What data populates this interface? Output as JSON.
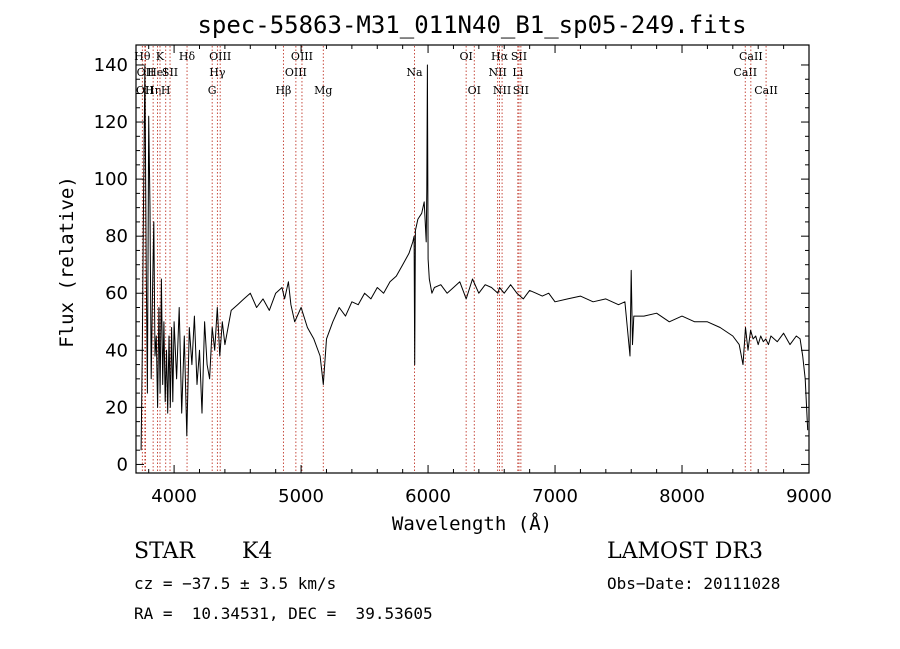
{
  "chart_data": {
    "type": "line",
    "title": "spec-55863-M31_011N40_B1_sp05-249.fits",
    "xlabel": "Wavelength (Å)",
    "ylabel": "Flux (relative)",
    "xlim": [
      3700,
      9000
    ],
    "ylim": [
      -3,
      147
    ],
    "xticks": [
      4000,
      5000,
      6000,
      7000,
      8000,
      9000
    ],
    "yticks": [
      0,
      20,
      40,
      60,
      80,
      100,
      120,
      140
    ],
    "grid": false,
    "line_color": "#000000",
    "marker_color": "#c0392b",
    "series": [
      {
        "name": "flux",
        "x": [
          3740,
          3750,
          3760,
          3770,
          3780,
          3790,
          3800,
          3810,
          3820,
          3830,
          3840,
          3850,
          3860,
          3870,
          3880,
          3890,
          3900,
          3910,
          3920,
          3930,
          3940,
          3950,
          3960,
          3970,
          3980,
          3990,
          4000,
          4020,
          4040,
          4060,
          4080,
          4100,
          4120,
          4140,
          4160,
          4180,
          4200,
          4220,
          4240,
          4260,
          4280,
          4300,
          4320,
          4340,
          4360,
          4380,
          4400,
          4450,
          4500,
          4550,
          4600,
          4650,
          4700,
          4750,
          4800,
          4850,
          4870,
          4900,
          4920,
          4950,
          5000,
          5050,
          5100,
          5150,
          5175,
          5200,
          5250,
          5300,
          5350,
          5400,
          5450,
          5500,
          5550,
          5600,
          5650,
          5700,
          5750,
          5800,
          5850,
          5880,
          5890,
          5895,
          5900,
          5920,
          5950,
          5970,
          5985,
          5990,
          5995,
          6000,
          6010,
          6030,
          6050,
          6100,
          6150,
          6200,
          6250,
          6300,
          6350,
          6400,
          6450,
          6500,
          6550,
          6563,
          6600,
          6650,
          6700,
          6750,
          6800,
          6850,
          6900,
          6950,
          7000,
          7100,
          7200,
          7300,
          7400,
          7500,
          7550,
          7590,
          7600,
          7610,
          7620,
          7650,
          7700,
          7800,
          7900,
          8000,
          8100,
          8200,
          8300,
          8400,
          8450,
          8480,
          8500,
          8520,
          8540,
          8560,
          8580,
          8600,
          8620,
          8640,
          8660,
          8680,
          8700,
          8750,
          8800,
          8850,
          8900,
          8930,
          8950,
          8970,
          8990
        ],
        "values": [
          5,
          40,
          95,
          140,
          70,
          25,
          122,
          90,
          30,
          60,
          85,
          38,
          45,
          20,
          55,
          25,
          65,
          28,
          50,
          22,
          40,
          18,
          45,
          20,
          48,
          22,
          50,
          30,
          55,
          18,
          45,
          10,
          48,
          35,
          52,
          28,
          40,
          18,
          50,
          35,
          30,
          48,
          40,
          55,
          38,
          50,
          42,
          54,
          56,
          58,
          60,
          55,
          58,
          54,
          60,
          62,
          58,
          64,
          56,
          50,
          55,
          48,
          44,
          38,
          28,
          44,
          50,
          55,
          52,
          57,
          56,
          60,
          58,
          62,
          60,
          64,
          66,
          70,
          74,
          78,
          80,
          35,
          82,
          86,
          88,
          92,
          78,
          96,
          140,
          72,
          65,
          60,
          62,
          63,
          60,
          62,
          64,
          58,
          65,
          60,
          63,
          62,
          60,
          62,
          60,
          63,
          60,
          58,
          61,
          60,
          59,
          60,
          57,
          58,
          59,
          57,
          58,
          56,
          57,
          38,
          68,
          42,
          52,
          52,
          52,
          53,
          50,
          52,
          50,
          50,
          48,
          45,
          42,
          35,
          48,
          40,
          47,
          44,
          45,
          42,
          45,
          43,
          44,
          42,
          45,
          43,
          46,
          42,
          45,
          44,
          38,
          30,
          12
        ]
      }
    ],
    "line_markers": [
      {
        "wavelength": 3750,
        "label": "Hθ",
        "row": 0
      },
      {
        "wavelength": 3770,
        "label": "OII",
        "row": 2
      },
      {
        "wavelength": 3775,
        "label": "OII",
        "row": 1
      },
      {
        "wavelength": 3835,
        "label": "Hη",
        "row": 2
      },
      {
        "wavelength": 3869,
        "label": "HeI",
        "row": 1
      },
      {
        "wavelength": 3889,
        "label": "K",
        "row": 0
      },
      {
        "wavelength": 3934,
        "label": "H",
        "row": 2
      },
      {
        "wavelength": 3968,
        "label": "SII",
        "row": 1
      },
      {
        "wavelength": 4102,
        "label": "Hδ",
        "row": 0
      },
      {
        "wavelength": 4300,
        "label": "G",
        "row": 2
      },
      {
        "wavelength": 4341,
        "label": "Hγ",
        "row": 1
      },
      {
        "wavelength": 4363,
        "label": "OIII",
        "row": 0
      },
      {
        "wavelength": 4861,
        "label": "Hβ",
        "row": 2
      },
      {
        "wavelength": 4959,
        "label": "OIII",
        "row": 1
      },
      {
        "wavelength": 5007,
        "label": "OIII",
        "row": 0
      },
      {
        "wavelength": 5175,
        "label": "Mg",
        "row": 2
      },
      {
        "wavelength": 5893,
        "label": "Na",
        "row": 1
      },
      {
        "wavelength": 6300,
        "label": "OI",
        "row": 0
      },
      {
        "wavelength": 6364,
        "label": "OI",
        "row": 2
      },
      {
        "wavelength": 6548,
        "label": "NII",
        "row": 1
      },
      {
        "wavelength": 6563,
        "label": "Hα",
        "row": 0
      },
      {
        "wavelength": 6583,
        "label": "NII",
        "row": 2
      },
      {
        "wavelength": 6707,
        "label": "Li",
        "row": 1
      },
      {
        "wavelength": 6716,
        "label": "SII",
        "row": 0
      },
      {
        "wavelength": 6731,
        "label": "SII",
        "row": 2
      },
      {
        "wavelength": 8498,
        "label": "CaII",
        "row": 1
      },
      {
        "wavelength": 8542,
        "label": "CaII",
        "row": 0
      },
      {
        "wavelength": 8662,
        "label": "CaII",
        "row": 2
      }
    ]
  },
  "info": {
    "class": "STAR",
    "subclass": "K4",
    "survey": "LAMOST DR3",
    "redshift": "cz = −37.5 ± 3.5 km/s",
    "obs_date": "Obs−Date: 20111028",
    "coords": "RA =  10.34531, DEC =  39.53605"
  }
}
